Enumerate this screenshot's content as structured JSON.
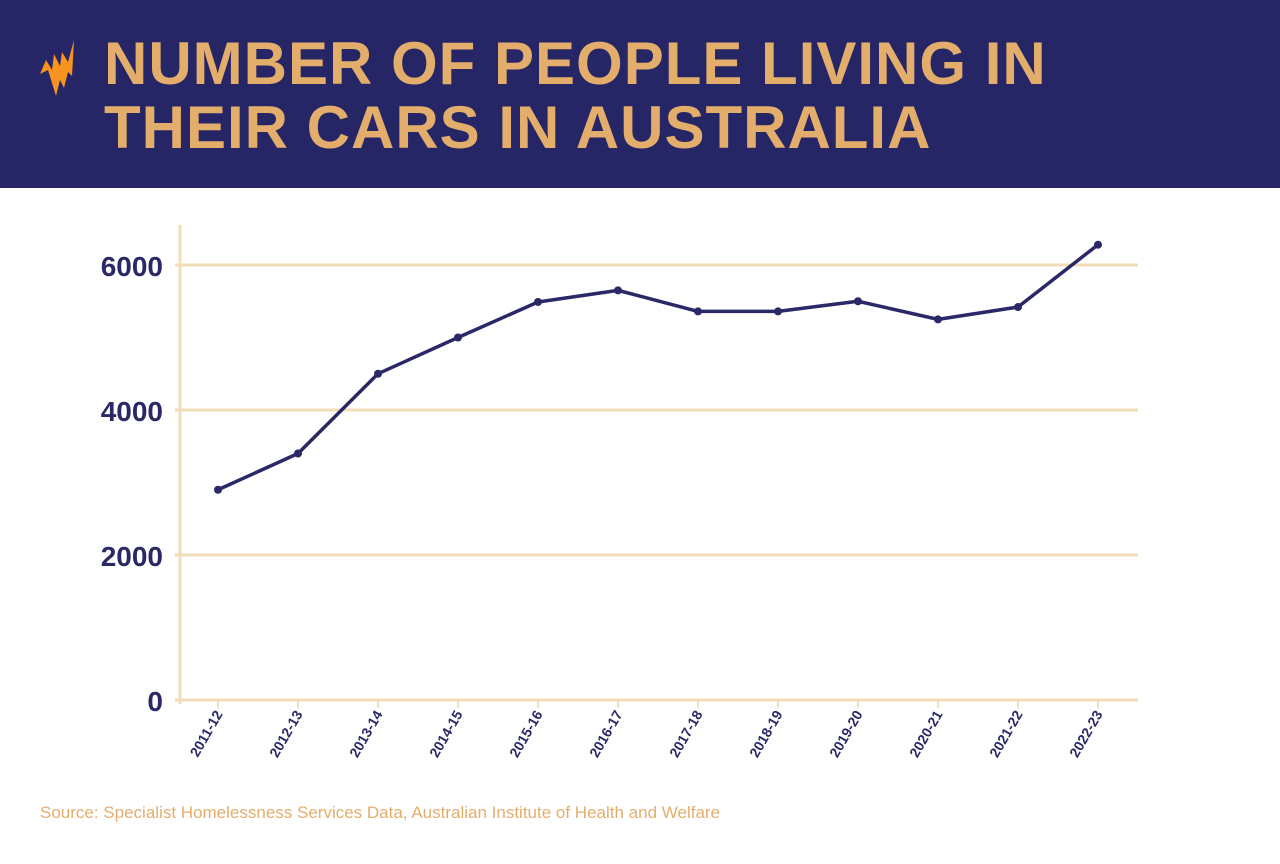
{
  "header": {
    "title_line1": "NUMBER OF PEOPLE LIVING IN",
    "title_line2": "THEIR CARS IN AUSTRALIA",
    "logo_icon": "sbs-logo-icon"
  },
  "colors": {
    "banner": "#262566",
    "title": "#e3ae6c",
    "line": "#2a2866",
    "grid": "#f3dcb8",
    "logo": "#f7931e"
  },
  "chart_data": {
    "type": "line",
    "title": "NUMBER OF PEOPLE LIVING IN THEIR CARS IN AUSTRALIA",
    "categories": [
      "2011-12",
      "2012-13",
      "2013-14",
      "2014-15",
      "2015-16",
      "2016-17",
      "2017-18",
      "2018-19",
      "2019-20",
      "2020-21",
      "2021-22",
      "2022-23"
    ],
    "values": [
      2900,
      3400,
      4500,
      5000,
      5490,
      5650,
      5360,
      5360,
      5500,
      5250,
      5420,
      6280
    ],
    "ylim": [
      0,
      6000
    ],
    "yticks": [
      "0",
      "2000",
      "4000",
      "6000"
    ],
    "grid": true,
    "xlabel": "",
    "ylabel": ""
  },
  "source": "Source: Specialist Homelessness Services Data, Australian Institute of Health and Welfare"
}
